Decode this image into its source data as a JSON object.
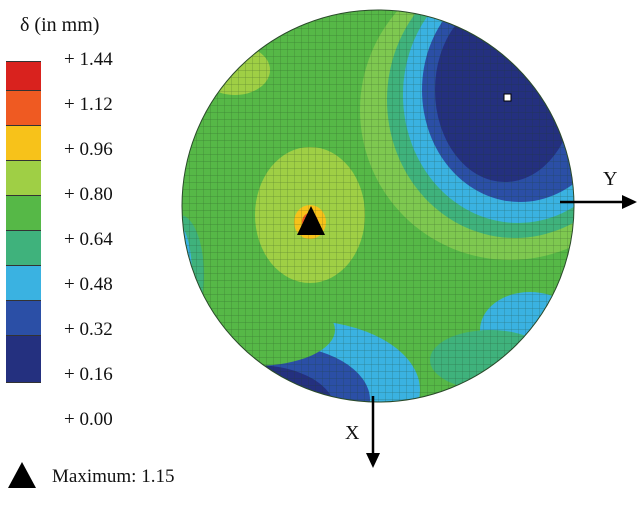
{
  "legend": {
    "title": "δ (in mm)",
    "levels": [
      {
        "label": "+ 1.44",
        "color": "#d9221e"
      },
      {
        "label": "+ 1.12",
        "color": "#ef5a22"
      },
      {
        "label": "+ 0.96",
        "color": "#f7c21a"
      },
      {
        "label": "+ 0.80",
        "color": "#9fcf45"
      },
      {
        "label": "+ 0.64",
        "color": "#56b847"
      },
      {
        "label": "+ 0.48",
        "color": "#3fb27c"
      },
      {
        "label": "+ 0.32",
        "color": "#3ab2e1"
      },
      {
        "label": "+ 0.16",
        "color": "#2b4fa6"
      },
      {
        "label": "+ 0.00",
        "color": "#24307f"
      }
    ]
  },
  "maximum": {
    "label": "Maximum: 1.15"
  },
  "axes": {
    "y_label": "Y",
    "x_label": "X"
  },
  "colors": {
    "field_green": "#56b847",
    "light_green": "#9fcf45",
    "cyan": "#3ab2e1",
    "teal": "#3fb27c",
    "blue": "#2b4fa6",
    "dark_blue": "#24307f",
    "yellow": "#f7c21a",
    "orange": "#ef5a22"
  }
}
